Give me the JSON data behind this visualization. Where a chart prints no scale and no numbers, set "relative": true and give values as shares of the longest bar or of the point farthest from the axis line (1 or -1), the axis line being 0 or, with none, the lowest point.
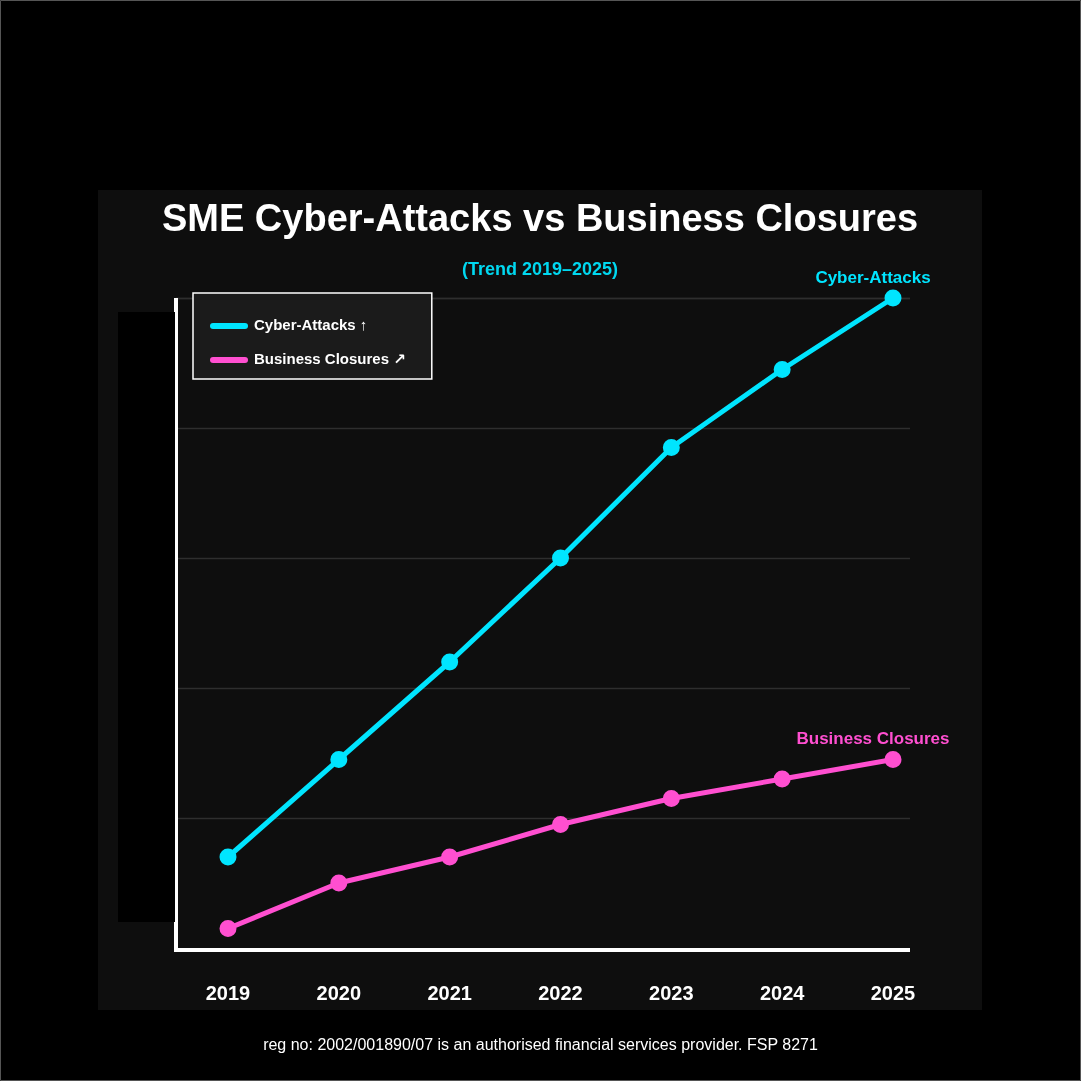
{
  "chart_data": {
    "type": "line",
    "title": "SME Cyber-Attacks vs Business Closures",
    "subtitle": "(Trend 2019–2025)",
    "categories": [
      "2019",
      "2020",
      "2021",
      "2022",
      "2023",
      "2024",
      "2025"
    ],
    "relative": true,
    "series": [
      {
        "name": "Cyber-Attacks ↑",
        "color": "#00e5ff",
        "values": [
          0.14,
          0.29,
          0.44,
          0.6,
          0.77,
          0.89,
          1
        ]
      },
      {
        "name": "Business Closures ↗",
        "color": "#ff4fd0",
        "values": [
          0.03,
          0.1,
          0.14,
          0.19,
          0.23,
          0.26,
          0.29
        ]
      }
    ],
    "annotations": [
      {
        "text": "Cyber-Attacks",
        "x": "2025",
        "y": 1
      },
      {
        "text": "Business Closures",
        "x": "2025",
        "y": 0.29
      },
      "reg no: 2002/001890/07 is an authorised financial services provider. FSP 8271"
    ],
    "grid": "y",
    "legend": "top left",
    "marker": "circle",
    "line_style": "solid"
  }
}
